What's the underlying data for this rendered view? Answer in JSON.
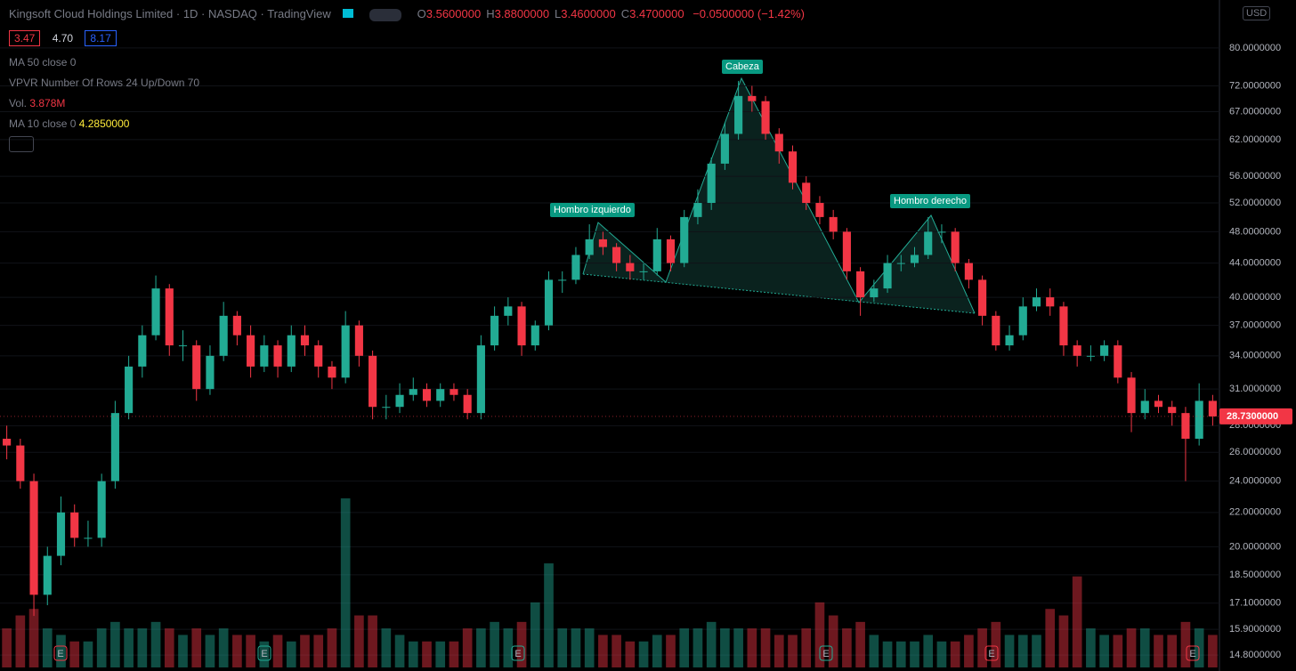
{
  "header": {
    "title": "Kingsoft Cloud Holdings Limited · 1D · NASDAQ · TradingView",
    "ohlc": [
      {
        "label": "O",
        "value": "3.5600000"
      },
      {
        "label": "H",
        "value": "3.8800000"
      },
      {
        "label": "L",
        "value": "3.4600000"
      },
      {
        "label": "C",
        "value": "3.4700000"
      }
    ],
    "change": "−0.0500000 (−1.42%)",
    "prices": [
      "3.47",
      "4.70",
      "8.17"
    ],
    "currency": "USD"
  },
  "indicators": [
    {
      "name": "MA 50 close 0"
    },
    {
      "name": "VPVR Number Of Rows 24 Up/Down 70"
    },
    {
      "name": "Vol.",
      "value": "3.878M"
    },
    {
      "name": "MA 10 close 0",
      "value": "4.2850000"
    }
  ],
  "annotations": [
    "Cabeza",
    "Hombro izquierdo",
    "Hombro derecho"
  ],
  "earnings_markers": [
    "E",
    "E",
    "E",
    "E",
    "E",
    "E"
  ],
  "chart_data": {
    "type": "candlestick",
    "log_scale": true,
    "grid": true,
    "up_color": "#22ab94",
    "down_color": "#f23645",
    "ylim": [
      14.3,
      91.4
    ],
    "yticks": [
      {
        "value": 80,
        "label": "80.0000000"
      },
      {
        "value": 72,
        "label": "72.0000000"
      },
      {
        "value": 67,
        "label": "67.0000000"
      },
      {
        "value": 62,
        "label": "62.0000000"
      },
      {
        "value": 56,
        "label": "56.0000000"
      },
      {
        "value": 52,
        "label": "52.0000000"
      },
      {
        "value": 48,
        "label": "48.0000000"
      },
      {
        "value": 44,
        "label": "44.0000000"
      },
      {
        "value": 40,
        "label": "40.0000000"
      },
      {
        "value": 37,
        "label": "37.0000000"
      },
      {
        "value": 34,
        "label": "34.0000000"
      },
      {
        "value": 31,
        "label": "31.0000000"
      },
      {
        "value": 28,
        "label": "28.0000000"
      },
      {
        "value": 26,
        "label": "26.0000000"
      },
      {
        "value": 24,
        "label": "24.0000000"
      },
      {
        "value": 22,
        "label": "22.0000000"
      },
      {
        "value": 20,
        "label": "20.0000000"
      },
      {
        "value": 18.5,
        "label": "18.5000000"
      },
      {
        "value": 17.1,
        "label": "17.1000000"
      },
      {
        "value": 15.9,
        "label": "15.9000000"
      },
      {
        "value": 14.8,
        "label": "14.8000000"
      }
    ],
    "last_price": {
      "value": 28.73,
      "label": "28.7300000"
    },
    "candles": [
      [
        27,
        28,
        25.5,
        26.5
      ],
      [
        26.5,
        27,
        23.5,
        24
      ],
      [
        24,
        24.5,
        16.5,
        17.5
      ],
      [
        17.5,
        20,
        17,
        19.5
      ],
      [
        19.5,
        23,
        19,
        22
      ],
      [
        22,
        22.5,
        20,
        20.5
      ],
      [
        20.5,
        21.5,
        20,
        20.5
      ],
      [
        20.5,
        24.5,
        20,
        24
      ],
      [
        24,
        30,
        23.5,
        29
      ],
      [
        29,
        34,
        28.5,
        33
      ],
      [
        33,
        37,
        32,
        36
      ],
      [
        36,
        42.5,
        35.5,
        41
      ],
      [
        41,
        41.5,
        34,
        35
      ],
      [
        35,
        36.5,
        33.5,
        35
      ],
      [
        35,
        35.5,
        30,
        31
      ],
      [
        31,
        35,
        30.5,
        34
      ],
      [
        34,
        39.5,
        33.5,
        38
      ],
      [
        38,
        38.5,
        35,
        36
      ],
      [
        36,
        37,
        32,
        33
      ],
      [
        33,
        36,
        32.5,
        35
      ],
      [
        35,
        35.5,
        32,
        33
      ],
      [
        33,
        37,
        32.5,
        36
      ],
      [
        36,
        37,
        34,
        35
      ],
      [
        35,
        35.5,
        32,
        33
      ],
      [
        33,
        33.5,
        31,
        32
      ],
      [
        32,
        38.5,
        31.5,
        37
      ],
      [
        37,
        37.5,
        33,
        34
      ],
      [
        34,
        34.5,
        28.5,
        29.5
      ],
      [
        29.5,
        30.5,
        28.5,
        29.5
      ],
      [
        29.5,
        31.5,
        29,
        30.5
      ],
      [
        30.5,
        32,
        30,
        31
      ],
      [
        31,
        31.5,
        29.5,
        30
      ],
      [
        30,
        31.5,
        29.5,
        31
      ],
      [
        31,
        31.5,
        30,
        30.5
      ],
      [
        30.5,
        31,
        28.5,
        29
      ],
      [
        29,
        36,
        28.5,
        35
      ],
      [
        35,
        39,
        34.5,
        38
      ],
      [
        38,
        40,
        37,
        39
      ],
      [
        39,
        39.5,
        34,
        35
      ],
      [
        35,
        37.5,
        34.5,
        37
      ],
      [
        37,
        43,
        36.5,
        42
      ],
      [
        42,
        43,
        40.5,
        42
      ],
      [
        42,
        46,
        41.5,
        45
      ],
      [
        45,
        49,
        44.5,
        47
      ],
      [
        47,
        48,
        45,
        46
      ],
      [
        46,
        46.5,
        43,
        44
      ],
      [
        44,
        45,
        42,
        43
      ],
      [
        43,
        44,
        42,
        43
      ],
      [
        43,
        48.5,
        42.5,
        47
      ],
      [
        47,
        47.5,
        43,
        44
      ],
      [
        44,
        51,
        43.5,
        50
      ],
      [
        50,
        54,
        49,
        52
      ],
      [
        52,
        59,
        51,
        58
      ],
      [
        58,
        65,
        57,
        63
      ],
      [
        63,
        73,
        62,
        70
      ],
      [
        70,
        72,
        67,
        69
      ],
      [
        69,
        70,
        62,
        63
      ],
      [
        63,
        64,
        58,
        60
      ],
      [
        60,
        61,
        54,
        55
      ],
      [
        55,
        56,
        51,
        52
      ],
      [
        52,
        53,
        49,
        50
      ],
      [
        50,
        51,
        47,
        48
      ],
      [
        48,
        48.5,
        42,
        43
      ],
      [
        43,
        43.5,
        38,
        40
      ],
      [
        40,
        42,
        39.5,
        41
      ],
      [
        41,
        45,
        40.5,
        44
      ],
      [
        44,
        45,
        43,
        44
      ],
      [
        44,
        46,
        43.5,
        45
      ],
      [
        45,
        50,
        44.5,
        48
      ],
      [
        48,
        49,
        46.5,
        48
      ],
      [
        48,
        48.5,
        43,
        44
      ],
      [
        44,
        44.5,
        41,
        42
      ],
      [
        42,
        42.5,
        37,
        38
      ],
      [
        38,
        38.5,
        34.5,
        35
      ],
      [
        35,
        37,
        34.5,
        36
      ],
      [
        36,
        40,
        35.5,
        39
      ],
      [
        39,
        41,
        38.5,
        40
      ],
      [
        40,
        41,
        38,
        39
      ],
      [
        39,
        39.5,
        34,
        35
      ],
      [
        35,
        35.5,
        33,
        34
      ],
      [
        34,
        35,
        33.5,
        34
      ],
      [
        34,
        35.5,
        33.5,
        35
      ],
      [
        35,
        35.5,
        31.5,
        32
      ],
      [
        32,
        32.5,
        27.5,
        29
      ],
      [
        29,
        31,
        28.5,
        30
      ],
      [
        30,
        30.5,
        29,
        29.5
      ],
      [
        29.5,
        30,
        28,
        29
      ],
      [
        29,
        29.5,
        24,
        27
      ],
      [
        27,
        31.5,
        26.5,
        30
      ],
      [
        30,
        30.5,
        28,
        28.73
      ]
    ],
    "volume": [
      3,
      4,
      4.5,
      3,
      2.5,
      2,
      2,
      3,
      3.5,
      3,
      3,
      3.5,
      3,
      2.5,
      3,
      2.5,
      3,
      2.5,
      2.5,
      2,
      2.5,
      2,
      2.5,
      2.5,
      3,
      13,
      4,
      4,
      3,
      2.5,
      2,
      2,
      2,
      2,
      3,
      3,
      3.5,
      3,
      3.5,
      5,
      8,
      3,
      3,
      3,
      2.5,
      2.5,
      2,
      2,
      2.5,
      2.5,
      3,
      3,
      3.5,
      3,
      3,
      3,
      3,
      2.5,
      2.5,
      3,
      5,
      4,
      3,
      3.5,
      2.5,
      2,
      2,
      2,
      2.5,
      2,
      2,
      2.5,
      3,
      3.5,
      2.5,
      2.5,
      2.5,
      4.5,
      4,
      7,
      3,
      2.5,
      2.5,
      3,
      3,
      2.5,
      2.5,
      3.5,
      3,
      2.5
    ]
  }
}
